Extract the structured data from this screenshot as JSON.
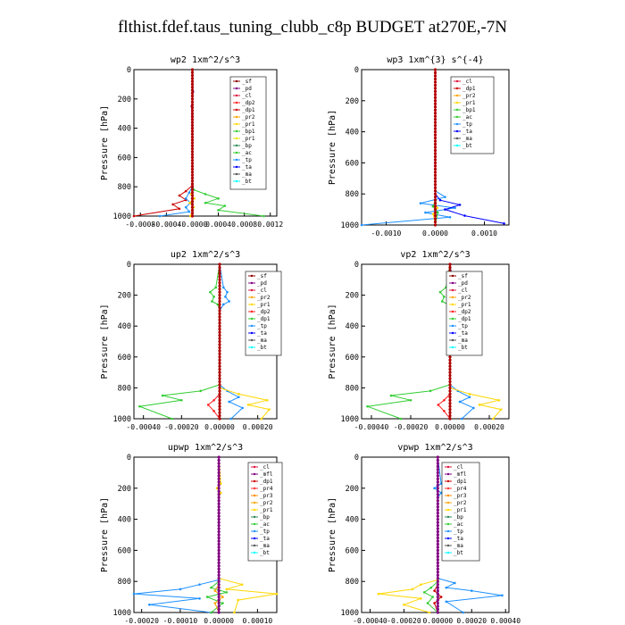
{
  "main_title": "flthist.fdef.taus_tuning_clubb_c8p  BUDGET at270E,-7N",
  "colors": {
    "_sf": "#8b0000",
    "_pd": "#800080",
    "_cl": "#dc143c",
    "_dp2": "#ff2020",
    "_dp1": "#cc0000",
    "_pr2": "#ffa500",
    "_pr1": "#ffd700",
    "_pr3": "#ff8c00",
    "_pr4": "#ff3333",
    "_bp": "#2e8b57",
    "_bp1": "#32cd32",
    "_ac": "#33cc33",
    "_tp": "#1e90ff",
    "_ta": "#0000ff",
    "_ma": "#555555",
    "_bt": "#00ffff",
    "_mfl": "#800080",
    "_pr1_alt": "#e6e600"
  },
  "chart_data": [
    {
      "type": "line",
      "title": "wp2   1xm^2/s^3",
      "ylabel": "Pressure [hPa]",
      "xlim": [
        -0.0009,
        0.0013
      ],
      "ylim": [
        1000,
        0
      ],
      "xticks": [
        -0.0008,
        -0.0004,
        0.0,
        0.0004,
        0.0008,
        0.0012
      ],
      "xtick_labels": [
        "-0.0008",
        "-0.0004",
        "-0.0000",
        "0.0004",
        "0.0008",
        "0.0012"
      ],
      "yticks": [
        0,
        200,
        400,
        600,
        800,
        1000
      ],
      "legend": [
        "_sf",
        "_pd",
        "_cl",
        "_dp2",
        "_dp1",
        "_pr2",
        "_pr1",
        "_bp1",
        "_pr1",
        "_bp",
        "_ac",
        "_tp",
        "_ta",
        "_ma",
        "_bt"
      ],
      "legend_colors": [
        "_sf",
        "_pd",
        "_cl",
        "_dp2",
        "_dp1",
        "_pr2",
        "_pr1",
        "_bp1",
        "_pr1_alt",
        "_bp",
        "_ac",
        "_tp",
        "_ta",
        "_ma",
        "_bt"
      ],
      "series": [
        {
          "key": "_bp1",
          "x": [
            0,
            0,
            2e-05,
            0.0002,
            0.0004,
            0.0002,
            0.0005,
            0.0004,
            0.0011
          ],
          "y": [
            0,
            780,
            820,
            850,
            880,
            910,
            930,
            960,
            1000
          ]
        },
        {
          "key": "_dp1",
          "x": [
            0,
            0,
            -0.0001,
            -0.0002,
            -0.0001,
            -0.0003,
            -0.0002,
            -0.0009
          ],
          "y": [
            0,
            790,
            830,
            860,
            890,
            920,
            950,
            1000
          ]
        },
        {
          "key": "_tp",
          "x": [
            0,
            0,
            -5e-05,
            -0.0001,
            -3e-05,
            -0.0001,
            -5e-05,
            -0.0005
          ],
          "y": [
            0,
            800,
            840,
            880,
            910,
            940,
            970,
            1000
          ]
        },
        {
          "key": "_pr1",
          "x": [
            0,
            0,
            -2e-05,
            3e-05,
            -4e-05,
            2e-05,
            -3e-05
          ],
          "y": [
            0,
            820,
            850,
            880,
            910,
            940,
            1000
          ]
        },
        {
          "key": "_pd",
          "x": [
            0,
            1e-05,
            0,
            -1e-05,
            0,
            0
          ],
          "y": [
            0,
            150,
            200,
            250,
            800,
            1000
          ]
        },
        {
          "key": "_sf",
          "x": [
            0,
            0,
            0
          ],
          "y": [
            0,
            500,
            1000
          ]
        }
      ]
    },
    {
      "type": "line",
      "title": "wp3   1xm^{3} s^{-4}",
      "ylabel": "Pressure [hPa]",
      "xlim": [
        -0.0015,
        0.0015
      ],
      "ylim": [
        1000,
        0
      ],
      "xticks": [
        -0.001,
        0.0,
        0.001
      ],
      "xtick_labels": [
        "-0.0010",
        "0.0000",
        "0.0010"
      ],
      "yticks": [
        0,
        200,
        400,
        600,
        800,
        1000
      ],
      "legend": [
        "_cl",
        "_dp1",
        "_pr2",
        "_pr1",
        "_bp1",
        "_ac",
        "_tp",
        "_ta",
        "_ma",
        "_bt"
      ],
      "legend_colors": [
        "_cl",
        "_dp1",
        "_pr2",
        "_pr1",
        "_bp1",
        "_ac",
        "_tp",
        "_ta",
        "_ma",
        "_bt"
      ],
      "series": [
        {
          "key": "_tp",
          "x": [
            0,
            0,
            0.0002,
            -0.0003,
            0.0004,
            -0.0002,
            0.0003,
            -0.0015
          ],
          "y": [
            0,
            780,
            820,
            860,
            890,
            920,
            950,
            1000
          ]
        },
        {
          "key": "_ta",
          "x": [
            0,
            0,
            0.0001,
            0.0005,
            0.0002,
            0.0006,
            0.0014
          ],
          "y": [
            0,
            800,
            840,
            870,
            900,
            940,
            990
          ]
        },
        {
          "key": "_ac",
          "x": [
            0,
            0,
            -5e-05,
            5e-05,
            0
          ],
          "y": [
            0,
            850,
            880,
            920,
            1000
          ]
        },
        {
          "key": "_pr1",
          "x": [
            0,
            0,
            4e-05,
            -4e-05,
            0
          ],
          "y": [
            0,
            860,
            890,
            930,
            1000
          ]
        },
        {
          "key": "_cl",
          "x": [
            0,
            0,
            0
          ],
          "y": [
            0,
            500,
            1000
          ]
        }
      ]
    },
    {
      "type": "line",
      "title": "up2   1xm^2/s^3",
      "ylabel": "Pressure [hPa]",
      "xlim": [
        -0.00045,
        0.0003
      ],
      "ylim": [
        1000,
        0
      ],
      "xticks": [
        -0.0004,
        -0.0002,
        0.0,
        0.0002
      ],
      "xtick_labels": [
        "-0.00040",
        "-0.00020",
        "0.00000",
        "0.00020"
      ],
      "yticks": [
        0,
        200,
        400,
        600,
        800,
        1000
      ],
      "legend": [
        "_sf",
        "_pd",
        "_cl",
        "_pr2",
        "_pr1",
        "_dp2",
        "_dp1",
        "_tp",
        "_ta",
        "_ma",
        "_bt"
      ],
      "legend_colors": [
        "_sf",
        "_pd",
        "_cl",
        "_pr2",
        "_pr1",
        "_dp2",
        "_bp1",
        "_tp",
        "_ta",
        "_ma",
        "_bt"
      ],
      "series": [
        {
          "key": "_tp",
          "x": [
            0,
            2e-05,
            4e-05,
            3e-05,
            5e-05,
            2e-05,
            0,
            0,
            4e-05,
            0.0001,
            5e-05,
            0.00012,
            6e-05
          ],
          "y": [
            0,
            150,
            180,
            210,
            240,
            260,
            300,
            780,
            820,
            860,
            890,
            930,
            1000
          ]
        },
        {
          "key": "_bp1",
          "x": [
            0,
            -2e-05,
            -5e-05,
            -3e-05,
            -4e-05,
            -1e-05,
            0,
            0,
            -0.0001,
            -0.0003,
            -0.0002,
            -0.00042,
            -0.00025
          ],
          "y": [
            0,
            150,
            180,
            210,
            240,
            260,
            300,
            780,
            820,
            850,
            880,
            920,
            1000
          ]
        },
        {
          "key": "_pr1",
          "x": [
            0,
            0,
            0.0001,
            0.00025,
            0.00015,
            0.00026,
            0.00022
          ],
          "y": [
            0,
            800,
            840,
            880,
            910,
            940,
            1000
          ]
        },
        {
          "key": "_dp2",
          "x": [
            0,
            0,
            -3e-05,
            -6e-05,
            -3e-05,
            0
          ],
          "y": [
            0,
            840,
            880,
            910,
            950,
            1000
          ]
        },
        {
          "key": "_sf",
          "x": [
            0,
            0,
            0
          ],
          "y": [
            0,
            500,
            1000
          ]
        }
      ]
    },
    {
      "type": "line",
      "title": "vp2   1xm^2/s^3",
      "ylabel": "Pressure [hPa]",
      "xlim": [
        -0.00045,
        0.0003
      ],
      "ylim": [
        1000,
        0
      ],
      "xticks": [
        -0.0004,
        -0.0002,
        0.0,
        0.0002
      ],
      "xtick_labels": [
        "-0.00040",
        "-0.00020",
        "0.00000",
        "0.00020"
      ],
      "yticks": [
        0,
        200,
        400,
        600,
        800,
        1000
      ],
      "legend": [
        "_sf",
        "_pd",
        "_cl",
        "_pr2",
        "_pr1",
        "_dp2",
        "_dp1",
        "_tp",
        "_ta",
        "_ma",
        "_bt"
      ],
      "legend_colors": [
        "_sf",
        "_pd",
        "_cl",
        "_pr2",
        "_pr1",
        "_dp2",
        "_bp1",
        "_tp",
        "_ta",
        "_ma",
        "_bt"
      ],
      "series": [
        {
          "key": "_tp",
          "x": [
            0,
            2e-05,
            4e-05,
            3e-05,
            5e-05,
            2e-05,
            0,
            0,
            4e-05,
            0.0001,
            5e-05,
            0.00012,
            6e-05
          ],
          "y": [
            0,
            150,
            180,
            210,
            240,
            260,
            300,
            780,
            820,
            860,
            890,
            930,
            1000
          ]
        },
        {
          "key": "_bp1",
          "x": [
            0,
            -2e-05,
            -5e-05,
            -3e-05,
            -4e-05,
            -1e-05,
            0,
            0,
            -0.0001,
            -0.0003,
            -0.0002,
            -0.00042,
            -0.00025
          ],
          "y": [
            0,
            150,
            180,
            210,
            240,
            260,
            300,
            780,
            820,
            850,
            880,
            920,
            1000
          ]
        },
        {
          "key": "_pr1",
          "x": [
            0,
            0,
            0.0001,
            0.00025,
            0.00015,
            0.00026,
            0.00022
          ],
          "y": [
            0,
            800,
            840,
            880,
            910,
            940,
            1000
          ]
        },
        {
          "key": "_dp2",
          "x": [
            0,
            0,
            -3e-05,
            -6e-05,
            -3e-05,
            0
          ],
          "y": [
            0,
            840,
            880,
            910,
            950,
            1000
          ]
        },
        {
          "key": "_sf",
          "x": [
            0,
            0,
            0
          ],
          "y": [
            0,
            500,
            1000
          ]
        }
      ]
    },
    {
      "type": "line",
      "title": "upwp   1xm^2/s^3",
      "ylabel": "Pressure [hPa]",
      "xlim": [
        -0.00022,
        0.00015
      ],
      "ylim": [
        1000,
        0
      ],
      "xticks": [
        -0.0002,
        -0.0001,
        0.0,
        0.0001
      ],
      "xtick_labels": [
        "-0.00020",
        "-0.00010",
        "0.00000",
        "0.00010"
      ],
      "yticks": [
        0,
        200,
        400,
        600,
        800,
        1000
      ],
      "legend": [
        "_cl",
        "_mfl",
        "_dp1",
        "_pr4",
        "_pr3",
        "_pr2",
        "_pr1",
        "_bp",
        "_ac",
        "_tp",
        "_ta",
        "_ma",
        "_bt"
      ],
      "legend_colors": [
        "_cl",
        "_mfl",
        "_dp1",
        "_pr4",
        "_pr3",
        "_pr2",
        "_pr1",
        "_bp",
        "_ac",
        "_tp",
        "_ta",
        "_ma",
        "_bt"
      ],
      "series": [
        {
          "key": "_pr1",
          "x": [
            0,
            5e-06,
            -5e-06,
            5e-06,
            0,
            0,
            6e-05,
            2e-05,
            0.00015,
            5e-05,
            4e-05
          ],
          "y": [
            0,
            170,
            200,
            230,
            260,
            780,
            820,
            850,
            880,
            920,
            1000
          ]
        },
        {
          "key": "_tp",
          "x": [
            0,
            0,
            -5e-05,
            -0.0001,
            -0.00022,
            -5e-05,
            -0.00018,
            -2e-05
          ],
          "y": [
            0,
            790,
            820,
            850,
            880,
            910,
            950,
            1000
          ]
        },
        {
          "key": "_ac",
          "x": [
            0,
            0,
            -2e-05,
            2e-05,
            -3e-05,
            1e-05,
            -2e-05
          ],
          "y": [
            0,
            800,
            840,
            870,
            900,
            940,
            1000
          ]
        },
        {
          "key": "_pr2",
          "x": [
            0,
            0,
            -1e-05,
            1e-05,
            -1e-05,
            0
          ],
          "y": [
            0,
            820,
            860,
            900,
            940,
            1000
          ]
        },
        {
          "key": "_mfl",
          "x": [
            0,
            0,
            0
          ],
          "y": [
            0,
            500,
            1000
          ]
        }
      ]
    },
    {
      "type": "line",
      "title": "vpwp   1xm^2/s^3",
      "ylabel": "Pressure [hPa]",
      "xlim": [
        -0.00045,
        0.00042
      ],
      "ylim": [
        1000,
        0
      ],
      "xticks": [
        -0.0004,
        -0.0002,
        0.0,
        0.0002,
        0.0004
      ],
      "xtick_labels": [
        "-0.00040",
        "-0.00020",
        "0.00000",
        "0.00020",
        "0.00040"
      ],
      "yticks": [
        0,
        200,
        400,
        600,
        800,
        1000
      ],
      "legend": [
        "_cl",
        "_mfl",
        "_dp1",
        "_pr4",
        "_pr3",
        "_pr2",
        "_pr1",
        "_bp",
        "_ac",
        "_tp",
        "_ta",
        "_ma",
        "_bt"
      ],
      "legend_colors": [
        "_cl",
        "_mfl",
        "_dp1",
        "_pr4",
        "_pr3",
        "_pr2",
        "_pr1",
        "_bp",
        "_ac",
        "_tp",
        "_ta",
        "_ma",
        "_bt"
      ],
      "series": [
        {
          "key": "_tp",
          "x": [
            0,
            2e-05,
            -2e-05,
            2e-05,
            0,
            0,
            0.0001,
            5e-05,
            0.0002,
            0.00038,
            5e-05,
            0.00015
          ],
          "y": [
            0,
            170,
            200,
            230,
            260,
            780,
            810,
            840,
            860,
            890,
            930,
            1000
          ]
        },
        {
          "key": "_pr1",
          "x": [
            0,
            0,
            -0.0001,
            -0.00015,
            -0.00035,
            -0.0001,
            -0.0002,
            -5e-05
          ],
          "y": [
            0,
            790,
            820,
            850,
            880,
            910,
            950,
            1000
          ]
        },
        {
          "key": "_ac",
          "x": [
            0,
            0,
            -4e-05,
            -8e-05,
            -3e-05,
            -6e-05,
            0
          ],
          "y": [
            0,
            800,
            840,
            870,
            900,
            940,
            1000
          ]
        },
        {
          "key": "_dp1",
          "x": [
            0,
            0,
            -2e-05,
            2e-05,
            -2e-05,
            0
          ],
          "y": [
            0,
            820,
            860,
            900,
            940,
            1000
          ]
        },
        {
          "key": "_mfl",
          "x": [
            0,
            0,
            0
          ],
          "y": [
            0,
            500,
            1000
          ]
        }
      ]
    }
  ]
}
